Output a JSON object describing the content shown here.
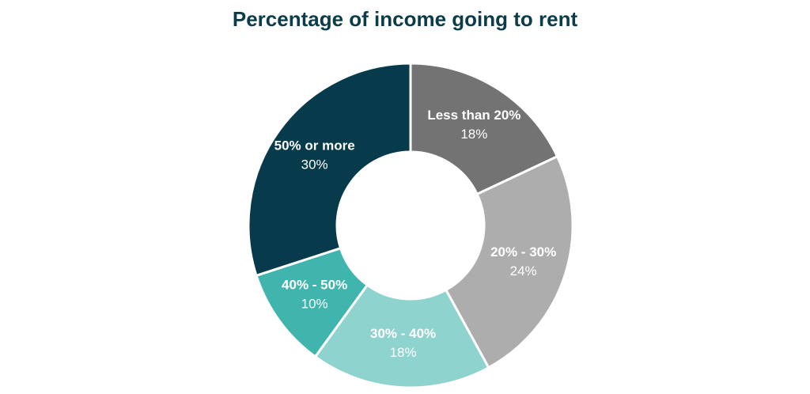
{
  "chart_data": {
    "type": "pie",
    "title": "Percentage of income going to rent",
    "categories": [
      "Less than 20%",
      "20% - 30%",
      "30% - 40%",
      "40% - 50%",
      "50% or more"
    ],
    "values": [
      18,
      24,
      18,
      10,
      30
    ],
    "value_labels": [
      "18%",
      "24%",
      "18%",
      "10%",
      "30%"
    ],
    "colors": [
      "#737373",
      "#adadad",
      "#8ed3ce",
      "#40b5ad",
      "#073b4c"
    ]
  }
}
